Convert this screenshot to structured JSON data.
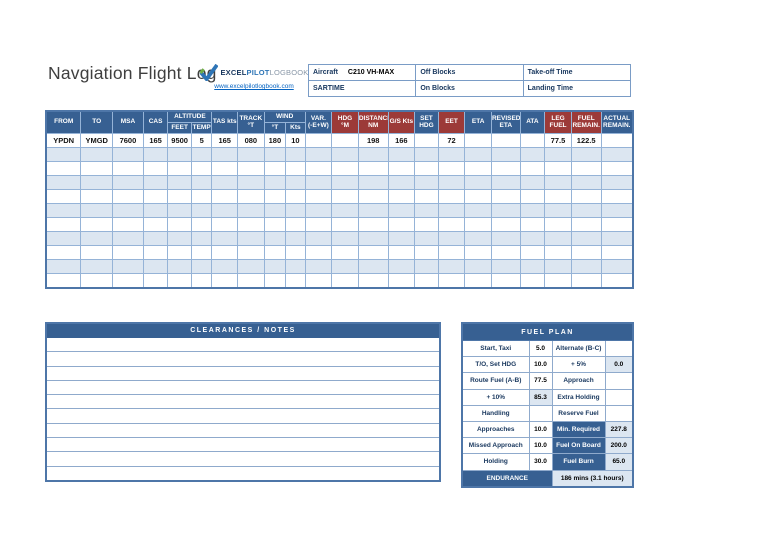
{
  "colors": {
    "accent-blue": "#376092",
    "accent-red": "#9C3A38",
    "row-alt": "#DCE6F1",
    "grid-border": "#95B3D7",
    "outer-border": "#4E76A8",
    "link-blue": "#0563C1",
    "label-navy": "#17365D"
  },
  "header": {
    "title": "Navgiation Flight Log",
    "logo": {
      "excel": "EXCEL",
      "pilot": "PILOT",
      "logbook": "LOGBOOK",
      "check_icon": "check-icon",
      "url": "www.excelpilotlogbook.com"
    }
  },
  "info_table": {
    "rows": [
      [
        {
          "label": "Aircraft",
          "value": "C210 VH-MAX"
        },
        {
          "label": "Off Blocks",
          "value": ""
        },
        {
          "label": "Take-off Time",
          "value": ""
        }
      ],
      [
        {
          "label": "SARTIME",
          "value": ""
        },
        {
          "label": "On Blocks",
          "value": ""
        },
        {
          "label": "Landing Time",
          "value": ""
        }
      ]
    ]
  },
  "flight_log": {
    "header_row1": [
      {
        "label": "FROM",
        "rowspan": 2,
        "accent": "blue"
      },
      {
        "label": "TO",
        "rowspan": 2,
        "accent": "blue"
      },
      {
        "label": "MSA",
        "rowspan": 2,
        "accent": "blue"
      },
      {
        "label": "CAS",
        "rowspan": 2,
        "accent": "blue"
      },
      {
        "label": "ALTITUDE",
        "colspan": 2,
        "accent": "blue"
      },
      {
        "label": "TAS kts",
        "rowspan": 2,
        "accent": "blue"
      },
      {
        "label": "TRACK\n°T",
        "rowspan": 2,
        "accent": "blue"
      },
      {
        "label": "WIND",
        "colspan": 2,
        "accent": "blue"
      },
      {
        "label": "VAR.\n(-E+W)",
        "rowspan": 2,
        "accent": "blue"
      },
      {
        "label": "HDG\n°M",
        "rowspan": 2,
        "accent": "red"
      },
      {
        "label": "DISTANCE\nNM",
        "rowspan": 2,
        "accent": "red"
      },
      {
        "label": "G/S Kts",
        "rowspan": 2,
        "accent": "red"
      },
      {
        "label": "SET\nHDG",
        "rowspan": 2,
        "accent": "blue"
      },
      {
        "label": "EET",
        "rowspan": 2,
        "accent": "red"
      },
      {
        "label": "ETA",
        "rowspan": 2,
        "accent": "blue"
      },
      {
        "label": "REVISED\nETA",
        "rowspan": 2,
        "accent": "blue"
      },
      {
        "label": "ATA",
        "rowspan": 2,
        "accent": "blue"
      },
      {
        "label": "LEG\nFUEL",
        "rowspan": 2,
        "accent": "red"
      },
      {
        "label": "FUEL\nREMAIN.",
        "rowspan": 2,
        "accent": "red"
      },
      {
        "label": "ACTUAL\nREMAIN.",
        "rowspan": 2,
        "accent": "blue"
      }
    ],
    "header_row2": [
      {
        "label": "FEET",
        "accent": "blue"
      },
      {
        "label": "TEMP",
        "accent": "blue"
      },
      {
        "label": "°T",
        "accent": "blue"
      },
      {
        "label": "Kts",
        "accent": "blue"
      }
    ],
    "data_row": [
      "YPDN",
      "YMGD",
      "7600",
      "165",
      "9500",
      "5",
      "165",
      "080",
      "180",
      "10",
      "",
      "",
      "198",
      "166",
      "",
      "72",
      "",
      "",
      "",
      "77.5",
      "122.5",
      ""
    ],
    "empty_row_count": 10
  },
  "clearances": {
    "title": "CLEARANCES / NOTES",
    "lines": [
      "",
      "",
      "",
      "",
      "",
      "",
      "",
      "",
      "",
      ""
    ]
  },
  "fuel_plan": {
    "title": "FUEL PLAN",
    "rows": [
      {
        "l1": "Start, Taxi",
        "v1": "5.0",
        "s1": false,
        "l2": "Alternate (B-C)",
        "dark2": false,
        "v2": "",
        "s2": false
      },
      {
        "l1": "T/O, Set HDG",
        "v1": "10.0",
        "s1": false,
        "l2": "+ 5%",
        "dark2": false,
        "v2": "0.0",
        "s2": true
      },
      {
        "l1": "Route Fuel (A-B)",
        "v1": "77.5",
        "s1": false,
        "l2": "Approach",
        "dark2": false,
        "v2": "",
        "s2": false
      },
      {
        "l1": "+ 10%",
        "v1": "85.3",
        "s1": true,
        "l2": "Extra Holding",
        "dark2": false,
        "v2": "",
        "s2": false
      },
      {
        "l1": "Handling",
        "v1": "",
        "s1": false,
        "l2": "Reserve Fuel",
        "dark2": false,
        "v2": "",
        "s2": false
      },
      {
        "l1": "Approaches",
        "v1": "10.0",
        "s1": false,
        "l2": "Min. Required",
        "dark2": true,
        "v2": "227.8",
        "s2": true
      },
      {
        "l1": "Missed Approach",
        "v1": "10.0",
        "s1": false,
        "l2": "Fuel On Board",
        "dark2": true,
        "v2": "200.0",
        "s2": true
      },
      {
        "l1": "Holding",
        "v1": "30.0",
        "s1": false,
        "l2": "Fuel Burn",
        "dark2": true,
        "v2": "65.0",
        "s2": true
      }
    ],
    "endurance_label": "ENDURANCE",
    "endurance_value": "186 mins (3.1 hours)"
  }
}
